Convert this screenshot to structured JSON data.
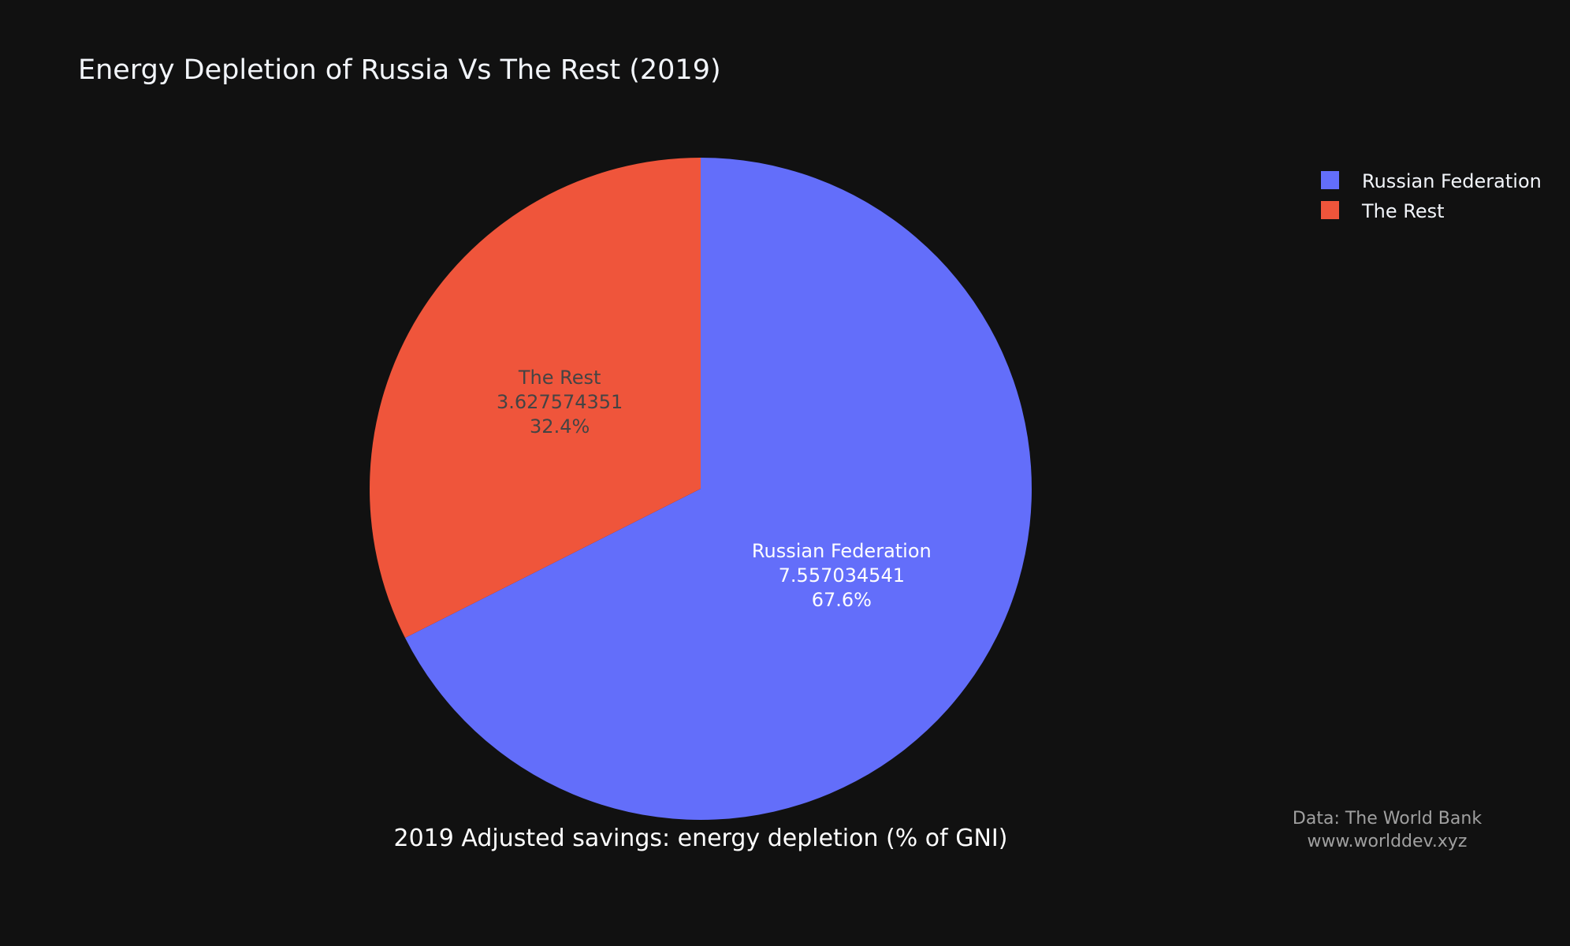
{
  "chart_data": {
    "type": "pie",
    "title": "Energy Depletion of Russia Vs The Rest (2019)",
    "xlabel": "2019 Adjusted savings: energy depletion (% of GNI)",
    "slices": [
      {
        "label": "Russian Federation",
        "value": 7.557034541,
        "value_text": "7.557034541",
        "percent_text": "67.6%",
        "color": "#636efa",
        "text_color": "#ffffff"
      },
      {
        "label": "The Rest",
        "value": 3.627574351,
        "value_text": "3.627574351",
        "percent_text": "32.4%",
        "color": "#ef553b",
        "text_color": "#444444"
      }
    ],
    "direction": "clockwise",
    "legend_position": "top-right"
  },
  "source": {
    "line1": "Data: The World Bank",
    "line2": "www.worlddev.xyz"
  },
  "colors": {
    "background": "#111111"
  }
}
